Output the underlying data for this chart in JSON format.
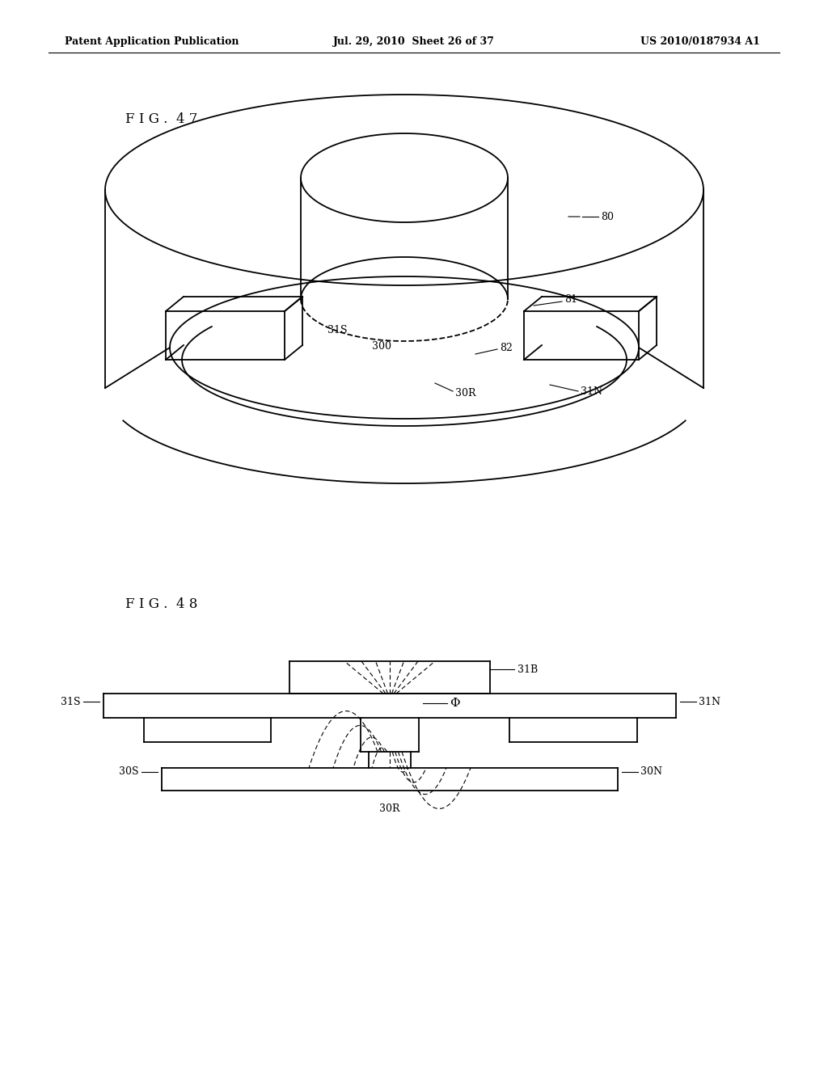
{
  "bg_color": "#ffffff",
  "line_color": "#000000",
  "header_left": "Patent Application Publication",
  "header_center": "Jul. 29, 2010  Sheet 26 of 37",
  "header_right": "US 2010/0187934 A1",
  "fig47_label": "F I G .  4 7",
  "fig48_label": "F I G .  4 8"
}
